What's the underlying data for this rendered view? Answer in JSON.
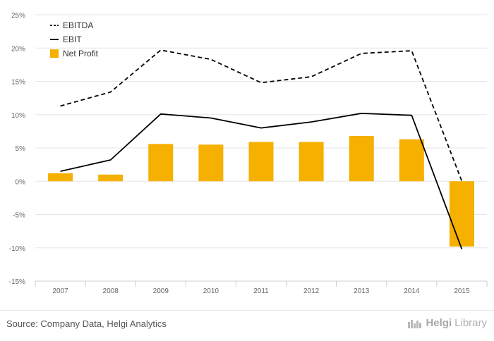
{
  "chart_data": {
    "type": "bar",
    "categories": [
      "2007",
      "2008",
      "2009",
      "2010",
      "2011",
      "2012",
      "2013",
      "2014",
      "2015"
    ],
    "series": [
      {
        "name": "EBITDA",
        "type": "line",
        "style": "dashed",
        "color": "#000000",
        "values": [
          11.3,
          13.4,
          19.7,
          18.3,
          14.8,
          15.7,
          19.2,
          19.6,
          0.0
        ]
      },
      {
        "name": "EBIT",
        "type": "line",
        "style": "solid",
        "color": "#000000",
        "values": [
          1.5,
          3.2,
          10.1,
          9.5,
          8.0,
          8.9,
          10.2,
          9.9,
          -10.2
        ]
      },
      {
        "name": "Net Profit",
        "type": "bar",
        "color": "#f5b000",
        "values": [
          1.2,
          1.0,
          5.6,
          5.5,
          5.9,
          5.9,
          6.8,
          6.3,
          -9.8
        ]
      }
    ],
    "yticks": [
      "25%",
      "20%",
      "15%",
      "10%",
      "5%",
      "0%",
      "-5%",
      "-10%",
      "-15%"
    ],
    "ylim": [
      -15,
      25
    ],
    "grid": true,
    "legend_position": "top-left"
  },
  "footer": {
    "source": "Source: Company Data, Helgi Analytics",
    "brand_prefix": "Helgi",
    "brand_suffix": "Library"
  }
}
